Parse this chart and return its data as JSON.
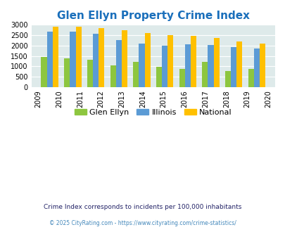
{
  "title": "Glen Ellyn Property Crime Index",
  "tick_years": [
    2009,
    2010,
    2011,
    2012,
    2013,
    2014,
    2015,
    2016,
    2017,
    2018,
    2019,
    2020
  ],
  "data_years": [
    2010,
    2011,
    2012,
    2013,
    2014,
    2015,
    2016,
    2017,
    2018,
    2019
  ],
  "glen_ellyn": [
    1450,
    1390,
    1320,
    1050,
    1210,
    990,
    860,
    1210,
    770,
    860
  ],
  "illinois": [
    2670,
    2670,
    2580,
    2270,
    2090,
    2000,
    2050,
    2010,
    1940,
    1850
  ],
  "national": [
    2920,
    2900,
    2850,
    2740,
    2600,
    2490,
    2460,
    2360,
    2180,
    2090
  ],
  "glen_ellyn_color": "#8dc63f",
  "illinois_color": "#5b9bd5",
  "national_color": "#ffc000",
  "bg_color": "#deeaea",
  "ylim": [
    0,
    3000
  ],
  "yticks": [
    0,
    500,
    1000,
    1500,
    2000,
    2500,
    3000
  ],
  "title_color": "#1a6fbb",
  "title_fontsize": 11,
  "legend_labels": [
    "Glen Ellyn",
    "Illinois",
    "National"
  ],
  "footnote1": "Crime Index corresponds to incidents per 100,000 inhabitants",
  "footnote2": "© 2025 CityRating.com - https://www.cityrating.com/crime-statistics/",
  "footnote1_color": "#222266",
  "footnote2_color": "#4488bb"
}
